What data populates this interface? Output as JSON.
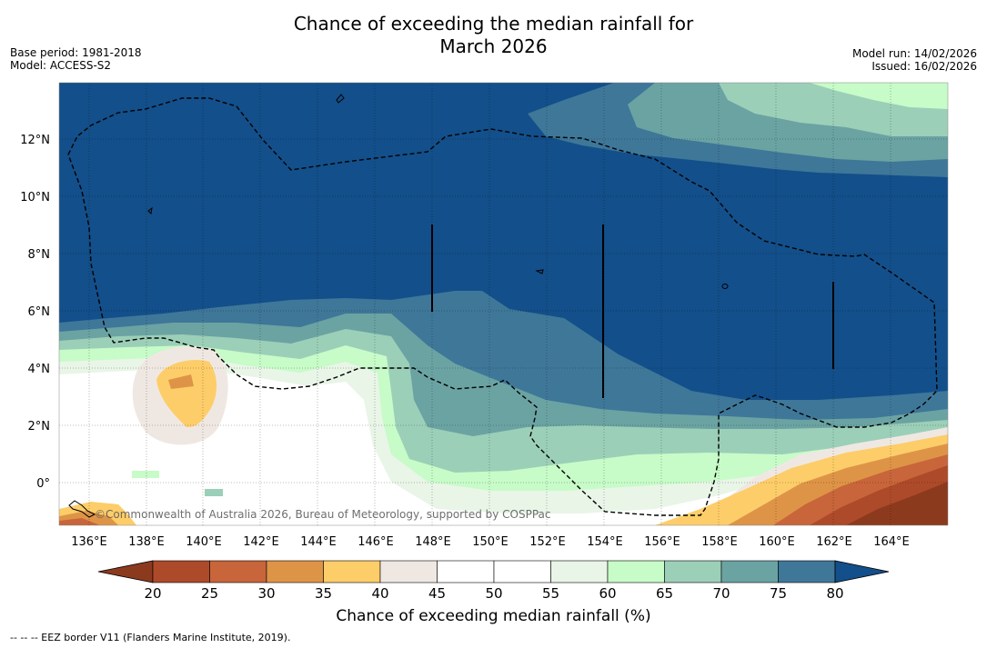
{
  "header": {
    "title_line1": "Chance of exceeding the median rainfall for",
    "title_line2": "March 2026",
    "base_period": "Base period: 1981-2018",
    "model": "Model: ACCESS-S2",
    "model_run": "Model run: 14/02/2026",
    "issued": "Issued: 16/02/2026"
  },
  "map": {
    "lat_labels": [
      "12°N",
      "10°N",
      "8°N",
      "6°N",
      "4°N",
      "2°N",
      "0°"
    ],
    "lon_labels": [
      "136°E",
      "138°E",
      "140°E",
      "142°E",
      "144°E",
      "146°E",
      "148°E",
      "150°E",
      "152°E",
      "154°E",
      "156°E",
      "158°E",
      "160°E",
      "162°E",
      "164°E"
    ],
    "attribution": "©Commonwealth of Australia 2026, Bureau of Meteorology, supported by COSPPac"
  },
  "colorbar": {
    "ticks": [
      "20",
      "25",
      "30",
      "35",
      "40",
      "45",
      "50",
      "55",
      "60",
      "65",
      "70",
      "75",
      "80"
    ],
    "colors": [
      "#8c3a1e",
      "#ad4a2a",
      "#c8653a",
      "#de9447",
      "#fdcd69",
      "#efe8e2",
      "#ffffff",
      "#ffffff",
      "#e8f5e7",
      "#c7fbc8",
      "#9ccfb8",
      "#6ba3a3",
      "#3f7799",
      "#134f8a"
    ],
    "label": "Chance of exceeding median rainfall (%)"
  },
  "footnote": "--  --  -- EEZ border V11 (Flanders Marine Institute, 2019)."
}
